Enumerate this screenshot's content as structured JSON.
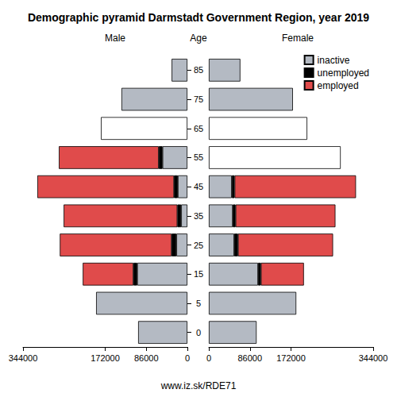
{
  "chart_data": {
    "type": "bar",
    "title": "Demographic pyramid Darmstadt Government Region, year 2019",
    "orientation": "horizontal",
    "stacked": true,
    "legend": "upper right",
    "axis_label": "Age",
    "footer": "www.iz.sk/RDE71",
    "categories": [
      "0",
      "5",
      "15",
      "25",
      "35",
      "45",
      "55",
      "65",
      "75",
      "85"
    ],
    "panels": [
      {
        "label": "Male",
        "xlim": [
          0,
          344000
        ],
        "xticks": [
          0,
          86000,
          172000,
          344000
        ],
        "series": [
          {
            "name": "inactive",
            "color": "#b4bac3",
            "values": [
              103000,
              191000,
              105000,
              23000,
              13000,
              20000,
              52000,
              null,
              138000,
              33000
            ]
          },
          {
            "name": "unemployed",
            "color": "#000000",
            "values": [
              null,
              null,
              8000,
              10000,
              8000,
              8000,
              8000,
              null,
              null,
              null
            ]
          },
          {
            "name": "employed",
            "color": "#e04b4b",
            "values": [
              null,
              null,
              106000,
              234000,
              238000,
              286000,
              209000,
              null,
              null,
              null
            ]
          },
          {
            "color": "#ffffff",
            "values": [
              null,
              null,
              null,
              null,
              null,
              null,
              null,
              181000,
              null,
              null
            ]
          }
        ]
      },
      {
        "label": "Female",
        "xlim": [
          0,
          344000
        ],
        "xticks": [
          0,
          86000,
          172000,
          344000
        ],
        "series": [
          {
            "name": "inactive",
            "color": "#b4bac3",
            "values": [
              100000,
              183000,
              103000,
              53000,
              50000,
              48000,
              null,
              null,
              176000,
              66000
            ]
          },
          {
            "name": "unemployed",
            "color": "#000000",
            "values": [
              null,
              null,
              6000,
              8000,
              6000,
              6000,
              null,
              null,
              null,
              null
            ]
          },
          {
            "name": "employed",
            "color": "#e04b4b",
            "values": [
              null,
              null,
              90000,
              199000,
              209000,
              254000,
              null,
              null,
              null,
              null
            ]
          },
          {
            "color": "#ffffff",
            "values": [
              null,
              null,
              null,
              null,
              null,
              null,
              276000,
              206000,
              null,
              null
            ]
          }
        ]
      }
    ]
  }
}
